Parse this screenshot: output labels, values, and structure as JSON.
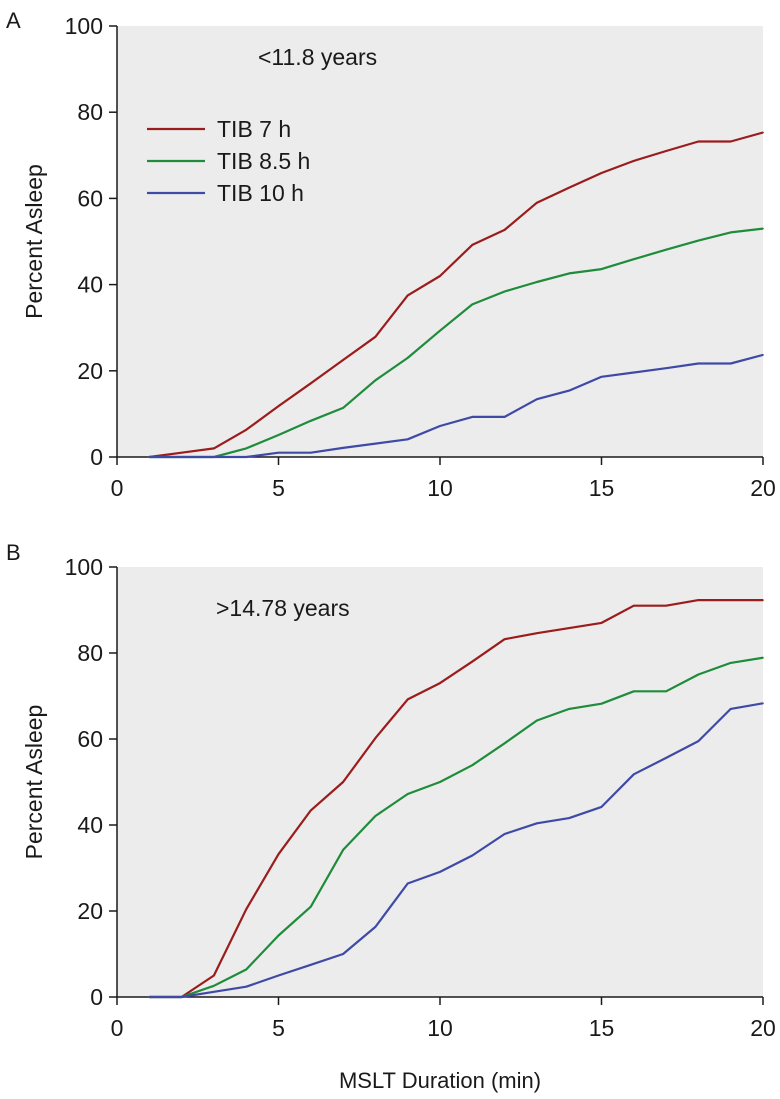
{
  "figure": {
    "xlabel": "MSLT Duration (min)"
  },
  "colors": {
    "plot_bg": "#ececec",
    "axis": "#1a1a1a",
    "series": [
      "#9b1c1c",
      "#1e8c3a",
      "#3f4aa6"
    ]
  },
  "chart_data": [
    {
      "type": "line",
      "panel_letter": "A",
      "annotation": "<11.8 years",
      "xlabel": "",
      "ylabel": "Percent Asleep",
      "xlim": [
        0,
        20
      ],
      "ylim": [
        0,
        100
      ],
      "xticks": [
        0,
        5,
        10,
        15,
        20
      ],
      "yticks": [
        0,
        20,
        40,
        60,
        80,
        100
      ],
      "legend": {
        "position": "top-left",
        "show": true
      },
      "x": [
        1,
        2,
        3,
        4,
        5,
        6,
        7,
        8,
        9,
        10,
        11,
        12,
        13,
        14,
        15,
        16,
        17,
        18,
        19,
        20
      ],
      "series": [
        {
          "name": "TIB 7 h",
          "values": [
            0,
            1,
            2,
            6.3,
            11.8,
            17.1,
            22.5,
            27.9,
            37.5,
            42.0,
            49.2,
            52.7,
            59.0,
            62.5,
            65.9,
            68.7,
            71.0,
            73.2,
            73.2,
            75.3
          ]
        },
        {
          "name": "TIB 8.5 h",
          "values": [
            0,
            0,
            0,
            2.0,
            5.1,
            8.4,
            11.4,
            17.8,
            23.0,
            29.3,
            35.4,
            38.4,
            40.6,
            42.6,
            43.6,
            45.9,
            48.1,
            50.2,
            52.1,
            53.0
          ]
        },
        {
          "name": "TIB 10 h",
          "values": [
            0,
            0,
            0,
            0,
            1.0,
            1.0,
            2.1,
            3.1,
            4.1,
            7.2,
            9.3,
            9.3,
            13.4,
            15.4,
            18.6,
            19.6,
            20.6,
            21.7,
            21.7,
            23.7
          ]
        }
      ]
    },
    {
      "type": "line",
      "panel_letter": "B",
      "annotation": ">14.78 years",
      "xlabel": "MSLT Duration (min)",
      "ylabel": "Percent Asleep",
      "xlim": [
        0,
        20
      ],
      "ylim": [
        0,
        100
      ],
      "xticks": [
        0,
        5,
        10,
        15,
        20
      ],
      "yticks": [
        0,
        20,
        40,
        60,
        80,
        100
      ],
      "legend": {
        "show": false
      },
      "x": [
        1,
        2,
        3,
        4,
        5,
        6,
        7,
        8,
        9,
        10,
        11,
        12,
        13,
        14,
        15,
        16,
        17,
        18,
        19,
        20
      ],
      "series": [
        {
          "name": "TIB 7 h",
          "values": [
            0,
            0,
            5.0,
            20.4,
            33.2,
            43.4,
            50.0,
            60.2,
            69.2,
            73.0,
            78.0,
            83.2,
            84.6,
            85.8,
            87.0,
            91.0,
            91.0,
            92.3,
            92.3,
            92.3
          ]
        },
        {
          "name": "TIB 8.5 h",
          "values": [
            0,
            0,
            2.6,
            6.4,
            14.3,
            21.0,
            34.2,
            42.1,
            47.2,
            50.0,
            53.9,
            59.0,
            64.3,
            67.0,
            68.2,
            71.1,
            71.1,
            75.0,
            77.7,
            78.9
          ]
        },
        {
          "name": "TIB 10 h",
          "values": [
            0,
            0,
            1.2,
            2.4,
            5.0,
            7.5,
            10.0,
            16.3,
            26.4,
            29.1,
            32.9,
            37.9,
            40.4,
            41.6,
            44.2,
            51.8,
            55.6,
            59.5,
            67.0,
            68.3
          ]
        }
      ]
    }
  ]
}
